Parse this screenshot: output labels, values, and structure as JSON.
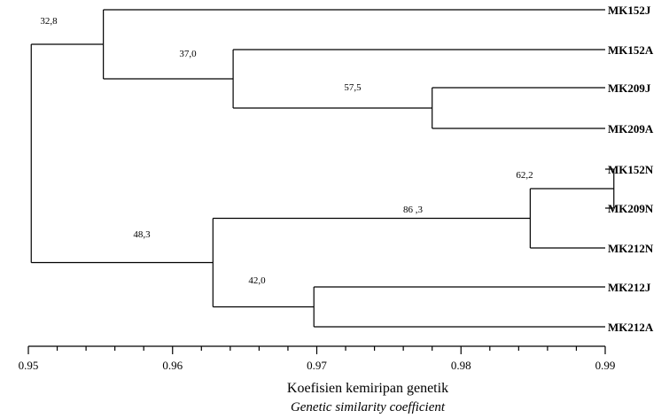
{
  "leaves": [
    "MK152J",
    "MK152A",
    "MK209J",
    "MK209A",
    "MK152N",
    "MK209N",
    "MK212N",
    "MK212J",
    "MK212A"
  ],
  "nodes": [
    {
      "id": "n1",
      "children": [
        "MK209J",
        "MK209A"
      ],
      "height": 0.978,
      "bootstrap": "57,5"
    },
    {
      "id": "n2",
      "children": [
        "MK152A",
        "n1"
      ],
      "height": 0.9642,
      "bootstrap": "37,0"
    },
    {
      "id": "n3",
      "children": [
        "MK152J",
        "n2"
      ],
      "height": 0.9552,
      "bootstrap": "32,8"
    },
    {
      "id": "n4",
      "children": [
        "MK152N",
        "MK209N"
      ],
      "height": 0.9906,
      "bootstrap": "62,2"
    },
    {
      "id": "n5",
      "children": [
        "n4",
        "MK212N"
      ],
      "height": 0.9848,
      "bootstrap": "86 ,3"
    },
    {
      "id": "n6",
      "children": [
        "MK212J",
        "MK212A"
      ],
      "height": 0.9698,
      "bootstrap": "42,0"
    },
    {
      "id": "n7",
      "children": [
        "n5",
        "n6"
      ],
      "height": 0.9628,
      "bootstrap": "48,3"
    },
    {
      "id": "root",
      "children": [
        "n3",
        "n7"
      ],
      "height": 0.9502,
      "bootstrap": ""
    }
  ],
  "axis": {
    "min": 0.95,
    "max": 0.99,
    "major_ticks": [
      "0.95",
      "0.96",
      "0.97",
      "0.98",
      "0.99"
    ],
    "minor_step": 0.002,
    "title": "Koefisien kemiripan genetik",
    "subtitle": "Genetic similarity coefficient"
  }
}
